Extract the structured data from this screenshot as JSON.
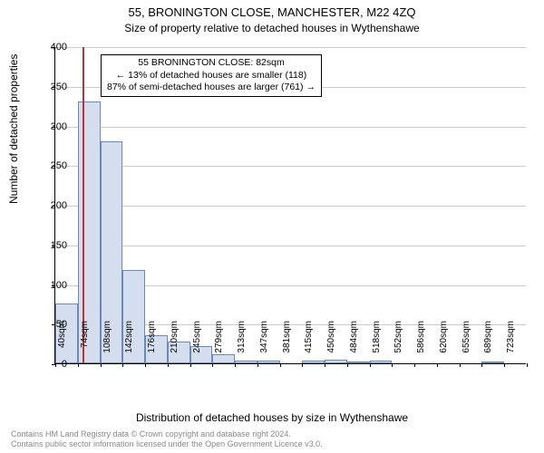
{
  "title": "55, BRONINGTON CLOSE, MANCHESTER, M22 4ZQ",
  "subtitle": "Size of property relative to detached houses in Wythenshawe",
  "ylabel": "Number of detached properties",
  "xlabel": "Distribution of detached houses by size in Wythenshawe",
  "chart": {
    "type": "histogram",
    "ylim": [
      0,
      400
    ],
    "ytick_step": 50,
    "bar_fill": "#d4deef",
    "bar_border": "#6b89b8",
    "grid_color": "#cccccc",
    "background": "#ffffff",
    "marker_color": "#c23030",
    "marker_x": 82,
    "categories": [
      "40sqm",
      "74sqm",
      "108sqm",
      "142sqm",
      "176sqm",
      "210sqm",
      "245sqm",
      "279sqm",
      "313sqm",
      "347sqm",
      "381sqm",
      "415sqm",
      "450sqm",
      "484sqm",
      "518sqm",
      "552sqm",
      "586sqm",
      "620sqm",
      "655sqm",
      "689sqm",
      "723sqm"
    ],
    "values": [
      75,
      330,
      280,
      118,
      35,
      28,
      22,
      12,
      4,
      4,
      0,
      3,
      5,
      2,
      3,
      0,
      0,
      0,
      0,
      1,
      0
    ]
  },
  "annotation": {
    "line1": "55 BRONINGTON CLOSE: 82sqm",
    "line2": "← 13% of detached houses are smaller (118)",
    "line3": "87% of semi-detached houses are larger (761) →"
  },
  "footer": {
    "line1": "Contains HM Land Registry data © Crown copyright and database right 2024.",
    "line2": "Contains public sector information licensed under the Open Government Licence v3.0."
  }
}
